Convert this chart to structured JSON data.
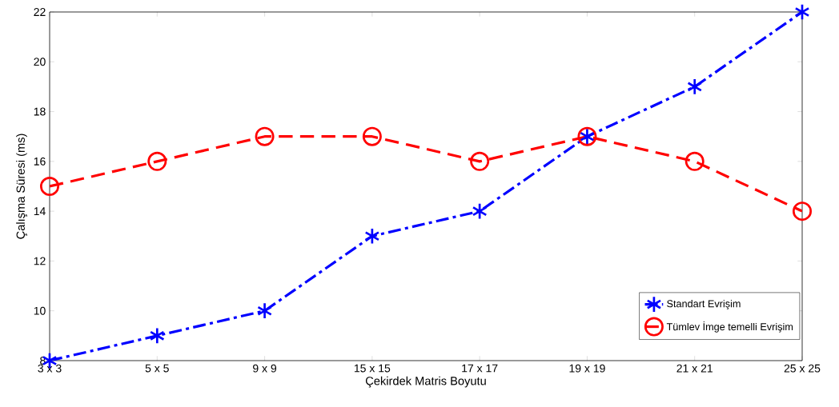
{
  "chart_data": {
    "type": "line",
    "xlabel": "Çekirdek Matris Boyutu",
    "ylabel": "Çalışma Süresi (ms)",
    "categories": [
      "3 x 3",
      "5 x 5",
      "9 x 9",
      "15 x 15",
      "17 x 17",
      "19 x 19",
      "21 x 21",
      "25 x 25"
    ],
    "series": [
      {
        "name": "Standart Evrişim",
        "color": "#0000ff",
        "marker": "cross",
        "line_style": "dashdot",
        "values": [
          8,
          9,
          10,
          13,
          14,
          17,
          19,
          22
        ]
      },
      {
        "name": "Tümlev İmge temelli Evrişim",
        "color": "#ff0000",
        "marker": "circle",
        "line_style": "dashed",
        "values": [
          15,
          16,
          17,
          17,
          16,
          17,
          16,
          14
        ]
      }
    ],
    "ylim": [
      8,
      22
    ],
    "yticks": [
      8,
      10,
      12,
      14,
      16,
      18,
      20,
      22
    ],
    "grid": false,
    "legend": "bottom right"
  }
}
